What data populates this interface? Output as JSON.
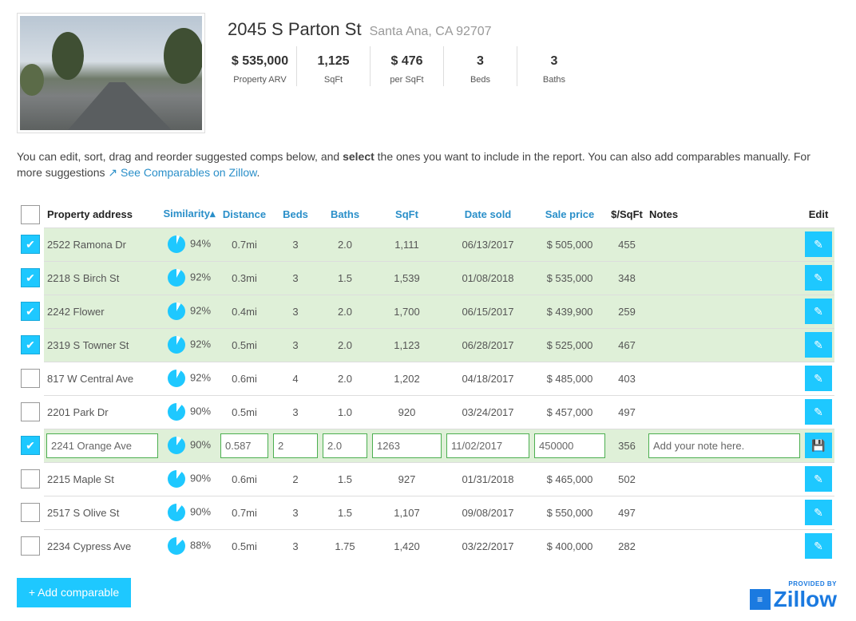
{
  "property": {
    "address": "2045 S Parton St",
    "city": "Santa Ana, CA 92707",
    "stats": [
      {
        "value": "$ 535,000",
        "label": "Property ARV"
      },
      {
        "value": "1,125",
        "label": "SqFt"
      },
      {
        "value": "$ 476",
        "label": "per SqFt"
      },
      {
        "value": "3",
        "label": "Beds"
      },
      {
        "value": "3",
        "label": "Baths"
      }
    ]
  },
  "intro": {
    "text1": "You can edit, sort, drag and reorder suggested comps below, and ",
    "bold": "select",
    "text2": " the ones you want to include in the report. You can also add comparables manually. For more suggestions ",
    "link": "See Comparables on Zillow",
    "end": "."
  },
  "columns": [
    "Property address",
    "Similarity",
    "Distance",
    "Beds",
    "Baths",
    "SqFt",
    "Date sold",
    "Sale price",
    "$/SqFt",
    "Notes",
    "Edit"
  ],
  "sort_indicator": "▴",
  "rows": [
    {
      "checked": true,
      "address": "2522 Ramona Dr",
      "similarity": "94%",
      "sim": 94,
      "distance": "0.7mi",
      "beds": "3",
      "baths": "2.0",
      "sqft": "1,111",
      "date": "06/13/2017",
      "price": "$ 505,000",
      "ppsf": "455"
    },
    {
      "checked": true,
      "address": "2218 S Birch St",
      "similarity": "92%",
      "sim": 92,
      "distance": "0.3mi",
      "beds": "3",
      "baths": "1.5",
      "sqft": "1,539",
      "date": "01/08/2018",
      "price": "$ 535,000",
      "ppsf": "348"
    },
    {
      "checked": true,
      "address": "2242 Flower",
      "similarity": "92%",
      "sim": 92,
      "distance": "0.4mi",
      "beds": "3",
      "baths": "2.0",
      "sqft": "1,700",
      "date": "06/15/2017",
      "price": "$ 439,900",
      "ppsf": "259"
    },
    {
      "checked": true,
      "address": "2319 S Towner St",
      "similarity": "92%",
      "sim": 92,
      "distance": "0.5mi",
      "beds": "3",
      "baths": "2.0",
      "sqft": "1,123",
      "date": "06/28/2017",
      "price": "$ 525,000",
      "ppsf": "467"
    },
    {
      "checked": false,
      "address": "817 W Central Ave",
      "similarity": "92%",
      "sim": 92,
      "distance": "0.6mi",
      "beds": "4",
      "baths": "2.0",
      "sqft": "1,202",
      "date": "04/18/2017",
      "price": "$ 485,000",
      "ppsf": "403"
    },
    {
      "checked": false,
      "address": "2201 Park Dr",
      "similarity": "90%",
      "sim": 90,
      "distance": "0.5mi",
      "beds": "3",
      "baths": "1.0",
      "sqft": "920",
      "date": "03/24/2017",
      "price": "$ 457,000",
      "ppsf": "497"
    },
    {
      "checked": true,
      "editing": true,
      "address": "2241 Orange Ave",
      "similarity": "90%",
      "sim": 90,
      "distance": "0.587",
      "beds": "2",
      "baths": "2.0",
      "sqft": "1263",
      "date": "11/02/2017",
      "price": "450000",
      "ppsf": "356",
      "notes": "Add your note here."
    },
    {
      "checked": false,
      "address": "2215 Maple St",
      "similarity": "90%",
      "sim": 90,
      "distance": "0.6mi",
      "beds": "2",
      "baths": "1.5",
      "sqft": "927",
      "date": "01/31/2018",
      "price": "$ 465,000",
      "ppsf": "502"
    },
    {
      "checked": false,
      "address": "2517 S Olive St",
      "similarity": "90%",
      "sim": 90,
      "distance": "0.7mi",
      "beds": "3",
      "baths": "1.5",
      "sqft": "1,107",
      "date": "09/08/2017",
      "price": "$ 550,000",
      "ppsf": "497"
    },
    {
      "checked": false,
      "address": "2234 Cypress Ave",
      "similarity": "88%",
      "sim": 88,
      "distance": "0.5mi",
      "beds": "3",
      "baths": "1.75",
      "sqft": "1,420",
      "date": "03/22/2017",
      "price": "$ 400,000",
      "ppsf": "282"
    }
  ],
  "add_button": "+ Add comparable",
  "provider": {
    "label": "PROVIDED BY",
    "brand": "Zillow"
  },
  "colors": {
    "accent": "#1ec8ff",
    "selected_row": "#dff0d8",
    "header_link": "#2a8fc9"
  }
}
